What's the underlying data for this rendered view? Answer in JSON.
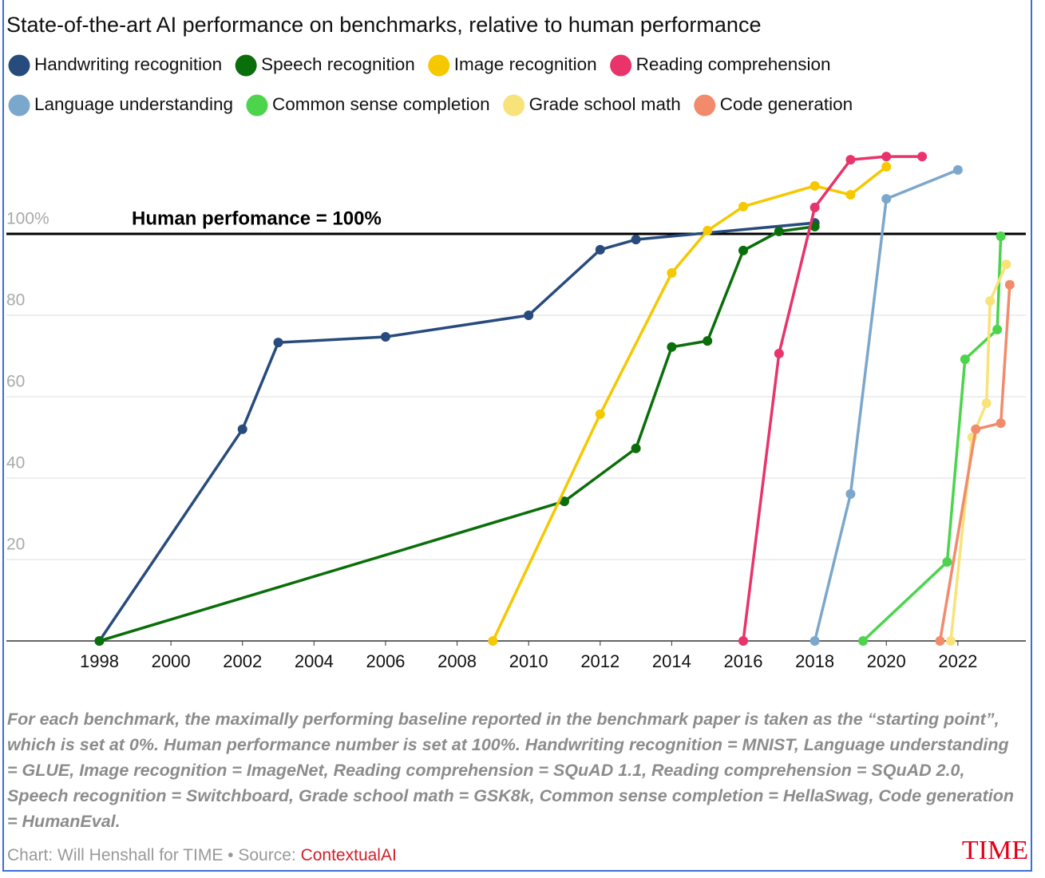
{
  "chart_data": {
    "type": "line",
    "title": "State-of-the-art AI performance on benchmarks, relative to human performance",
    "xlim": [
      1995.4,
      2023.9
    ],
    "ylim": [
      0,
      125
    ],
    "xticks": [
      1998,
      2000,
      2002,
      2004,
      2006,
      2008,
      2010,
      2012,
      2014,
      2016,
      2018,
      2020,
      2022
    ],
    "yticks": [
      20,
      40,
      60,
      80,
      {
        "value": 100,
        "label": "100%"
      }
    ],
    "grid": true,
    "reference_line": {
      "value": 100,
      "label": "Human perfomance = 100%"
    },
    "series": [
      {
        "name": "Handwriting recognition",
        "color": "#284b7e",
        "x": [
          1998,
          2002,
          2003,
          2006,
          2010,
          2012,
          2013,
          2018
        ],
        "values": [
          0,
          52,
          73.3,
          74.7,
          80,
          96.1,
          98.6,
          102.7
        ]
      },
      {
        "name": "Speech recognition",
        "color": "#0a6e0a",
        "x": [
          1998,
          2011,
          2013,
          2014,
          2015,
          2016,
          2017,
          2018
        ],
        "values": [
          0,
          34.3,
          47.3,
          72.2,
          73.7,
          95.9,
          100.6,
          101.8
        ]
      },
      {
        "name": "Image recognition",
        "color": "#f5c800",
        "x": [
          2009,
          2012,
          2014,
          2015,
          2016,
          2018,
          2019,
          2020
        ],
        "values": [
          0,
          55.7,
          90.4,
          100.8,
          106.7,
          111.8,
          109.6,
          116.5
        ]
      },
      {
        "name": "Reading comprehension",
        "color": "#e8336b",
        "x": [
          2016,
          2017,
          2018,
          2019,
          2020,
          2021
        ],
        "values": [
          0,
          70.6,
          106.5,
          118.2,
          119,
          119
        ]
      },
      {
        "name": "Language understanding",
        "color": "#7ca7cc",
        "x": [
          2018,
          2019,
          2020,
          2022
        ],
        "values": [
          0,
          36.1,
          108.6,
          115.7
        ]
      },
      {
        "name": "Common sense completion",
        "color": "#4cd44c",
        "x": [
          2019.35,
          2021.7,
          2022.2,
          2023.1,
          2023.2
        ],
        "values": [
          0,
          19.4,
          69.2,
          76.5,
          99.4
        ]
      },
      {
        "name": "Grade school math",
        "color": "#f8e27a",
        "x": [
          2021.8,
          2022.4,
          2022.8,
          2022.9,
          2023.35
        ],
        "values": [
          0,
          50,
          58.4,
          83.5,
          92.5
        ]
      },
      {
        "name": "Code generation",
        "color": "#f28b6c",
        "x": [
          2021.5,
          2022.5,
          2023.2,
          2023.45
        ],
        "values": [
          0,
          52,
          53.5,
          87.5
        ]
      }
    ],
    "note": "For each benchmark, the maximally performing baseline reported in the benchmark paper is taken as the “starting point”, which is set at 0%. Human performance number is set at 100%. Handwriting recognition = MNIST, Language understanding = GLUE, Image recognition = ImageNet, Reading comprehension = SQuAD 1.1, Reading comprehension = SQuAD 2.0, Speech recognition = Switchboard, Grade school math = GSK8k, Common sense completion = HellaSwag, Code generation = HumanEval.",
    "credit": "Chart: Will Henshall for TIME • Source: ",
    "source": "ContextualAI",
    "logo": "TIME"
  }
}
